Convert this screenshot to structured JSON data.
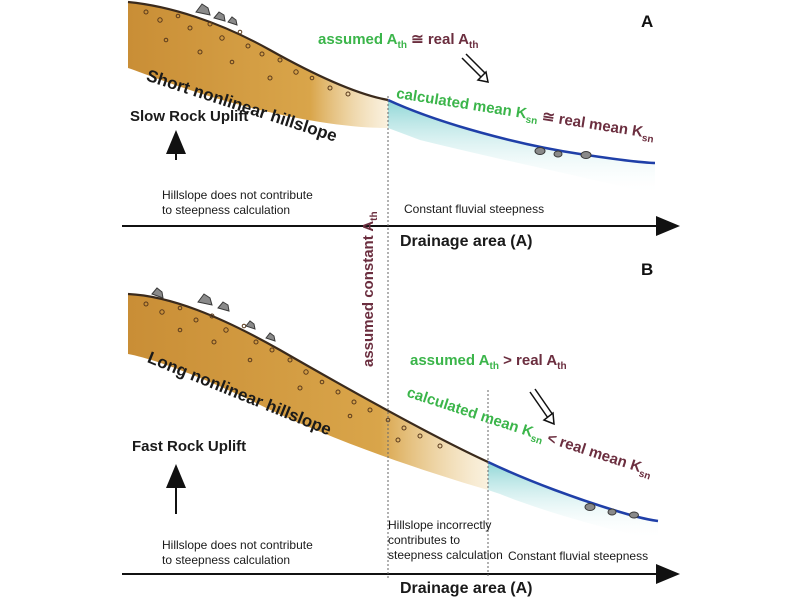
{
  "panel_a": {
    "letter": "A",
    "hillslope_label": "Short nonlinear hillslope",
    "uplift_label": "Slow Rock Uplift",
    "hillslope_note_line1": "Hillslope does not contribute",
    "hillslope_note_line2": "to steepness calculation",
    "fluvial_note": "Constant fluvial steepness",
    "axis_label": "Drainage area (A)",
    "ath_compare": {
      "left": "assumed A",
      "sub1": "th",
      "op": " ≅ real A",
      "sub2": "th"
    },
    "ksn_compare": {
      "left": "calculated mean K",
      "sub1": "sn",
      "op": " ≅ real mean K",
      "sub2": "sn"
    }
  },
  "panel_b": {
    "letter": "B",
    "hillslope_label": "Long nonlinear hillslope",
    "uplift_label": "Fast Rock Uplift",
    "hillslope_note_line1": "Hillslope does not contribute",
    "hillslope_note_line2": "to steepness calculation",
    "incorrect_note_line1": "Hillslope incorrectly",
    "incorrect_note_line2": "contributes to",
    "incorrect_note_line3": "steepness calculation",
    "fluvial_note": "Constant fluvial steepness",
    "axis_label": "Drainage area (A)",
    "ath_compare": {
      "left": "assumed A",
      "sub1": "th",
      "op": " > real A",
      "sub2": "th"
    },
    "ksn_compare": {
      "left": "calculated mean K",
      "sub1": "sn",
      "op": " < real mean K",
      "sub2": "sn"
    }
  },
  "vertical_label": {
    "main": "assumed constant A",
    "sub": "th"
  },
  "colors": {
    "hillslope_fill": "#d9a54a",
    "hillslope_line": "#3a2a1c",
    "river_line": "#1f3fa8",
    "river_fill": "#9fdcdc",
    "green_text": "#3bb54a",
    "maroon_text": "#6b2e3f"
  }
}
